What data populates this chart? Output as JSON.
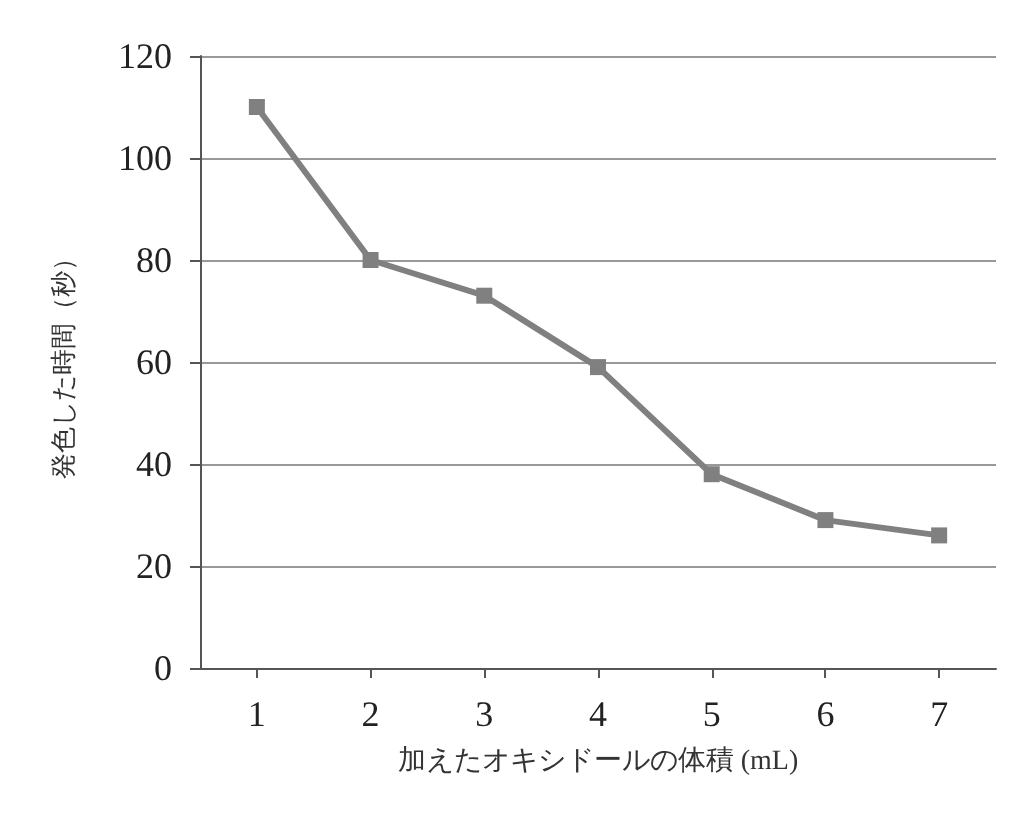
{
  "chart_data": {
    "type": "line",
    "xlabel": "加えたオキシドールの体積 (mL)",
    "ylabel": "発色した時間（秒）",
    "categories": [
      "1",
      "2",
      "3",
      "4",
      "5",
      "6",
      "7"
    ],
    "series": [
      {
        "color": "#808080",
        "values": [
          110,
          80,
          73,
          59,
          38,
          29,
          26
        ]
      }
    ],
    "ylim": [
      0,
      120
    ],
    "yticks": [
      0,
      20,
      40,
      60,
      80,
      100,
      120
    ],
    "grid": "y",
    "marker": "square",
    "line_style": "solid"
  }
}
